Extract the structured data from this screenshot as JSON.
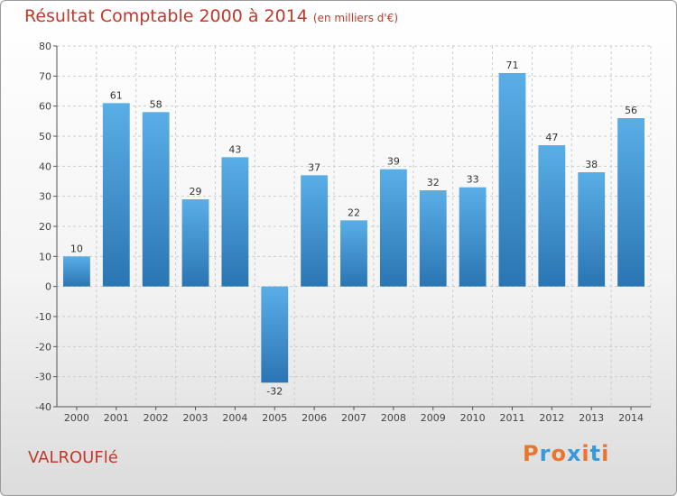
{
  "title": "Résultat Comptable 2000 à 2014",
  "unit_label": "(en milliers d'€)",
  "commune": "VALROUFlé",
  "logo": {
    "text": "Proxiti",
    "colors": [
      "#e8772e",
      "#3a9ad9",
      "#e8772e",
      "#3a9ad9",
      "#e8772e",
      "#3a9ad9",
      "#e8772e"
    ]
  },
  "colors": {
    "title": "#c0392b",
    "bar_light": "#5aaee6",
    "bar_dark": "#2a75b3",
    "grid": "#cccccc"
  },
  "chart_data": {
    "type": "bar",
    "title": "Résultat Comptable 2000 à 2014",
    "xlabel": "",
    "ylabel": "",
    "categories": [
      "2000",
      "2001",
      "2002",
      "2003",
      "2004",
      "2005",
      "2006",
      "2007",
      "2008",
      "2009",
      "2010",
      "2011",
      "2012",
      "2013",
      "2014"
    ],
    "values": [
      10,
      61,
      58,
      29,
      43,
      -32,
      37,
      22,
      39,
      32,
      33,
      71,
      47,
      38,
      56
    ],
    "ylim": [
      -40,
      80
    ],
    "yticks": [
      80,
      70,
      60,
      50,
      40,
      30,
      20,
      10,
      0,
      -10,
      -20,
      -30,
      -40
    ],
    "grid": true
  }
}
